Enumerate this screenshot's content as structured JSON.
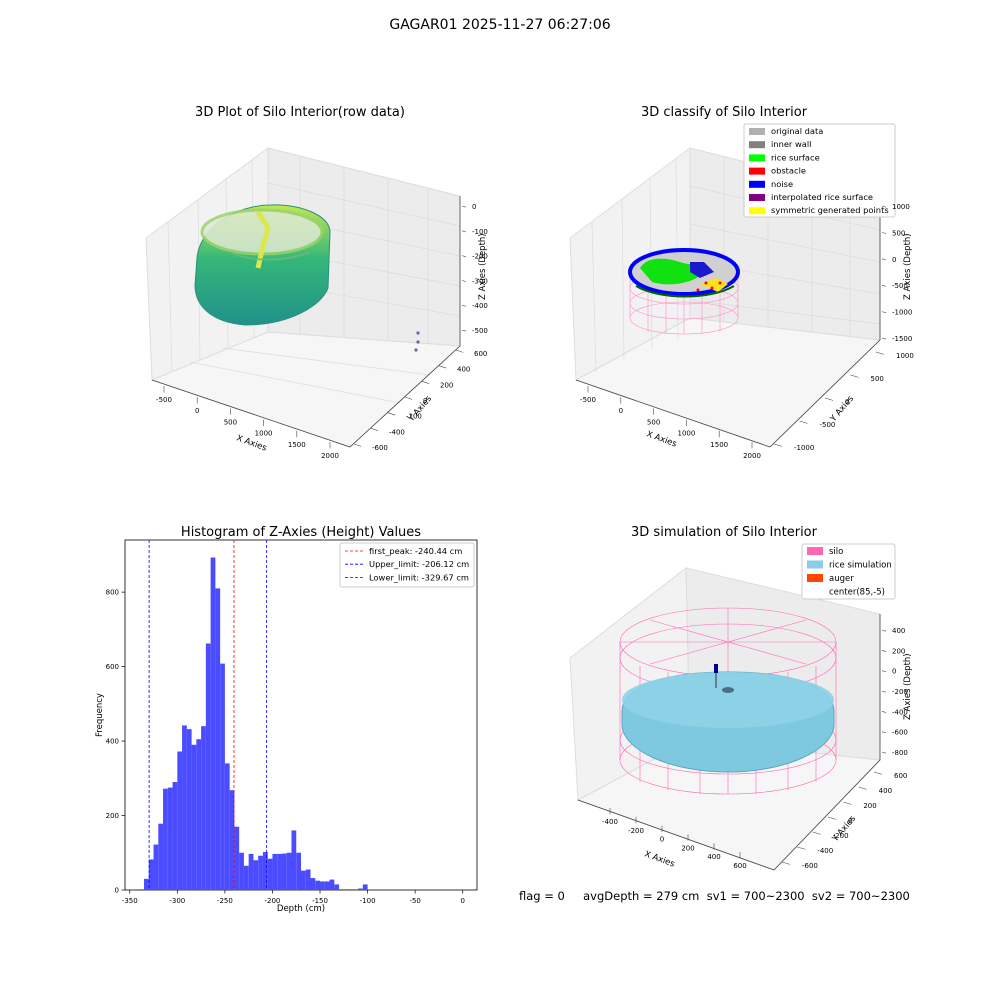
{
  "figure": {
    "suptitle": "GAGAR01 2025-11-27 06:27:06",
    "status_line": "flag = 0     avgDepth = 279 cm  sv1 = 700~2300  sv2 = 700~2300"
  },
  "panels": {
    "raw": {
      "title": "3D Plot of Silo Interior(row data)",
      "xlabel": "X Axies",
      "ylabel": "Y Axies",
      "zlabel": "Z Axies (Depth)",
      "x_ticks": [
        "-500",
        "0",
        "500",
        "1000",
        "1500",
        "2000"
      ],
      "y_ticks": [
        "-600",
        "-400",
        "-200",
        "0",
        "200",
        "400",
        "600"
      ],
      "z_ticks": [
        "0",
        "-100",
        "-200",
        "-300",
        "-400",
        "-500"
      ]
    },
    "classify": {
      "title": "3D classify of Silo Interior",
      "xlabel": "X Axies",
      "ylabel": "Y Axies",
      "zlabel": "Z Axies (Depth)",
      "x_ticks": [
        "-500",
        "0",
        "500",
        "1000",
        "1500",
        "2000"
      ],
      "y_ticks": [
        "-1000",
        "-500",
        "0",
        "500",
        "1000"
      ],
      "z_ticks": [
        "1000",
        "500",
        "0",
        "-500",
        "-1000",
        "-1500"
      ],
      "legend": [
        {
          "label": "original data",
          "color": "#b0b0b0"
        },
        {
          "label": "inner wall",
          "color": "#808080"
        },
        {
          "label": "rice surface",
          "color": "#00ff00"
        },
        {
          "label": "obstacle",
          "color": "#ff0000"
        },
        {
          "label": "noise",
          "color": "#0000ff"
        },
        {
          "label": "interpolated rice surface",
          "color": "#800080"
        },
        {
          "label": "symmetric generated points",
          "color": "#ffff00"
        }
      ]
    },
    "simulation": {
      "title": "3D simulation of Silo Interior",
      "xlabel": "X Axies",
      "ylabel": "Y Axies",
      "zlabel": "Z Axies (Depth)",
      "x_ticks": [
        "-400",
        "-200",
        "0",
        "200",
        "400",
        "600"
      ],
      "y_ticks": [
        "-600",
        "-400",
        "-200",
        "0",
        "200",
        "400",
        "600"
      ],
      "z_ticks": [
        "400",
        "200",
        "0",
        "-200",
        "-400",
        "-600",
        "-800"
      ],
      "legend": [
        {
          "label": "silo",
          "color": "#ff69b4"
        },
        {
          "label": "rice simulation",
          "color": "#87ceeb"
        },
        {
          "label": "auger",
          "color": "#ff4500"
        },
        {
          "label": "center(85,-5)",
          "color": "#ffffff"
        }
      ]
    }
  },
  "chart_data": [
    {
      "type": "bar",
      "title": "Histogram of Z-Axies (Height) Values",
      "xlabel": "Depth (cm)",
      "ylabel": "Frequency",
      "xlim": [
        -355,
        15
      ],
      "ylim": [
        0,
        940
      ],
      "bin_width": 5,
      "x_ticks": [
        -350,
        -300,
        -250,
        -200,
        -150,
        -100,
        -50,
        0
      ],
      "y_ticks": [
        0,
        200,
        400,
        600,
        800
      ],
      "bar_color": "#4b4bff",
      "bins": [
        [
          -340,
          2
        ],
        [
          -335,
          30
        ],
        [
          -330,
          82
        ],
        [
          -325,
          122
        ],
        [
          -320,
          178
        ],
        [
          -315,
          272
        ],
        [
          -310,
          275
        ],
        [
          -305,
          290
        ],
        [
          -300,
          372
        ],
        [
          -295,
          442
        ],
        [
          -290,
          432
        ],
        [
          -285,
          390
        ],
        [
          -280,
          405
        ],
        [
          -275,
          440
        ],
        [
          -270,
          662
        ],
        [
          -265,
          893
        ],
        [
          -260,
          810
        ],
        [
          -255,
          608
        ],
        [
          -250,
          340
        ],
        [
          -245,
          268
        ],
        [
          -240,
          170
        ],
        [
          -235,
          100
        ],
        [
          -230,
          65
        ],
        [
          -225,
          97
        ],
        [
          -220,
          80
        ],
        [
          -215,
          92
        ],
        [
          -210,
          102
        ],
        [
          -205,
          84
        ],
        [
          -200,
          97
        ],
        [
          -195,
          97
        ],
        [
          -190,
          98
        ],
        [
          -185,
          100
        ],
        [
          -180,
          160
        ],
        [
          -175,
          100
        ],
        [
          -170,
          52
        ],
        [
          -165,
          55
        ],
        [
          -160,
          32
        ],
        [
          -155,
          25
        ],
        [
          -150,
          23
        ],
        [
          -145,
          23
        ],
        [
          -140,
          28
        ],
        [
          -135,
          15
        ],
        [
          -130,
          2
        ],
        [
          -125,
          2
        ],
        [
          -120,
          2
        ],
        [
          -115,
          2
        ],
        [
          -110,
          4
        ],
        [
          -105,
          15
        ]
      ],
      "bins_note_x_offset": 0,
      "reference_lines": [
        {
          "label": "first_peak: -240.44 cm",
          "x": -240.44,
          "color": "#ff0000"
        },
        {
          "label": "Upper_limit: -206.12 cm",
          "x": -206.12,
          "color": "#0000ff"
        },
        {
          "label": "Lower_limit: -329.67 cm",
          "x": -329.67,
          "color": "#0000ff"
        }
      ],
      "legend_position": "top-right",
      "grid": false
    }
  ]
}
